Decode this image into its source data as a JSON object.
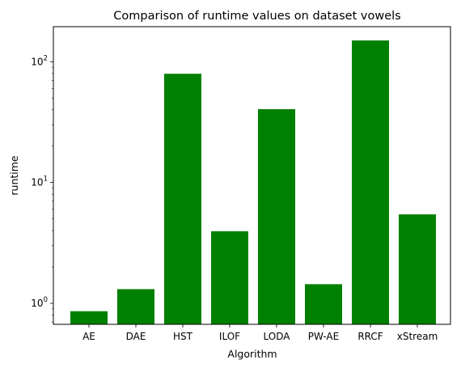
{
  "chart_data": {
    "type": "bar",
    "title": "Comparison of runtime values on dataset vowels",
    "xlabel": "Algorithm",
    "ylabel": "runtime",
    "y_scale": "log",
    "ylim": [
      0.67,
      195
    ],
    "y_ticks": [
      {
        "value": 1,
        "base": "10",
        "exp": "0"
      },
      {
        "value": 10,
        "base": "10",
        "exp": "1"
      },
      {
        "value": 100,
        "base": "10",
        "exp": "2"
      }
    ],
    "categories": [
      "AE",
      "DAE",
      "HST",
      "ILOF",
      "LODA",
      "PW-AE",
      "RRCF",
      "xStream"
    ],
    "values": [
      0.86,
      1.31,
      79.5,
      3.95,
      40.5,
      1.44,
      150,
      5.45
    ],
    "bar_color": "#008000",
    "grid": false,
    "legend": "none"
  }
}
